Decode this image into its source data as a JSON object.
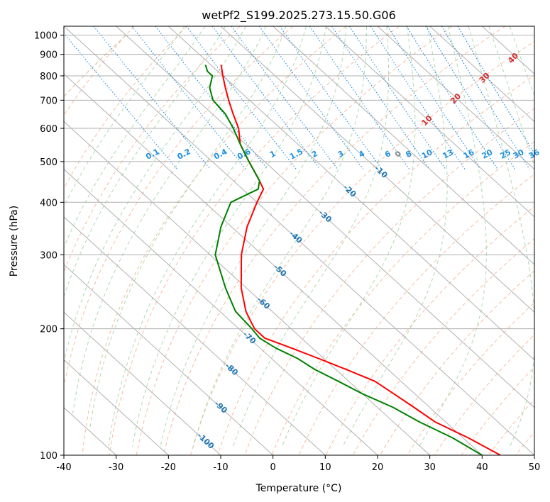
{
  "chart_data": {
    "type": "line",
    "title": "wetPf2_S199.2025.273.15.50.G06",
    "xlabel": "Temperature (°C)",
    "ylabel": "Pressure (hPa)",
    "xlim": [
      -40,
      50
    ],
    "ylim": [
      1050,
      100
    ],
    "yscale": "log",
    "grid": true,
    "x_ticks": [
      "-40",
      "-30",
      "-20",
      "-10",
      "0",
      "10",
      "20",
      "30",
      "40",
      "50"
    ],
    "y_ticks": [
      {
        "p": 100,
        "label": "100"
      },
      {
        "p": 200,
        "label": "200"
      },
      {
        "p": 300,
        "label": "300"
      },
      {
        "p": 400,
        "label": "400"
      },
      {
        "p": 500,
        "label": "500"
      },
      {
        "p": 600,
        "label": "600"
      },
      {
        "p": 700,
        "label": "700"
      },
      {
        "p": 800,
        "label": "800"
      },
      {
        "p": 900,
        "label": "900"
      },
      {
        "p": 1000,
        "label": "1000"
      }
    ],
    "isotherm_labels": [
      {
        "t": -100,
        "p": 108,
        "text": "-100"
      },
      {
        "t": -90,
        "p": 130,
        "text": "-90"
      },
      {
        "t": -80,
        "p": 160,
        "text": "-80"
      },
      {
        "t": -70,
        "p": 190,
        "text": "-70"
      },
      {
        "t": -60,
        "p": 230,
        "text": "-60"
      },
      {
        "t": -50,
        "p": 275,
        "text": "-50"
      },
      {
        "t": -40,
        "p": 330,
        "text": "-40"
      },
      {
        "t": -30,
        "p": 370,
        "text": "-30"
      },
      {
        "t": -20,
        "p": 425,
        "text": "-20"
      },
      {
        "t": -10,
        "p": 472,
        "text": "-10"
      }
    ],
    "mixing_ratio_labels": [
      "0.1",
      "0.2",
      "0.4",
      "0.6",
      "1",
      "1.5",
      "2",
      "3",
      "4",
      "6",
      "8",
      "10",
      "13",
      "16",
      "20",
      "25",
      "30",
      "36"
    ],
    "mixing_ratio_label_t": [
      -23,
      -17,
      -10,
      -5.5,
      0,
      4.5,
      8,
      13,
      17,
      22,
      26,
      29.5,
      33.5,
      37.5,
      41,
      44.5,
      47,
      50
    ],
    "mixing_ratio_values": [
      0.1,
      0.2,
      0.4,
      0.6,
      1,
      1.5,
      2,
      3,
      4,
      6,
      8,
      10,
      13,
      16,
      20,
      25,
      30,
      36
    ],
    "moist_adiabat_labels": [
      {
        "t": 24,
        "p": 520,
        "text": "0"
      },
      {
        "t": 29.5,
        "p": 625,
        "text": "10"
      },
      {
        "t": 35,
        "p": 705,
        "text": "20"
      },
      {
        "t": 40.5,
        "p": 790,
        "text": "30"
      },
      {
        "t": 46,
        "p": 880,
        "text": "40"
      }
    ],
    "series": [
      {
        "name": "",
        "color": "#ff0000",
        "role": "temperature",
        "points": [
          [
            100,
            -46.5
          ],
          [
            110,
            -49
          ],
          [
            120,
            -52
          ],
          [
            130,
            -53
          ],
          [
            140,
            -54
          ],
          [
            150,
            -55
          ],
          [
            160,
            -58
          ],
          [
            170,
            -61
          ],
          [
            180,
            -64
          ],
          [
            190,
            -67
          ],
          [
            200,
            -67
          ],
          [
            210,
            -66
          ],
          [
            220,
            -65
          ],
          [
            250,
            -61
          ],
          [
            300,
            -54
          ],
          [
            350,
            -47
          ],
          [
            400,
            -40
          ],
          [
            430,
            -36
          ],
          [
            450,
            -35
          ],
          [
            500,
            -33
          ],
          [
            550,
            -31
          ],
          [
            600,
            -28
          ],
          [
            650,
            -26
          ],
          [
            700,
            -24
          ],
          [
            750,
            -22
          ],
          [
            800,
            -20
          ],
          [
            850,
            -18
          ]
        ]
      },
      {
        "name": "",
        "color": "#008000",
        "role": "dewpoint",
        "points": [
          [
            100,
            -50
          ],
          [
            110,
            -52
          ],
          [
            120,
            -55
          ],
          [
            130,
            -57
          ],
          [
            140,
            -60
          ],
          [
            150,
            -62
          ],
          [
            160,
            -64
          ],
          [
            170,
            -65
          ],
          [
            180,
            -67
          ],
          [
            190,
            -68
          ],
          [
            200,
            -67.5
          ],
          [
            220,
            -67
          ],
          [
            250,
            -64
          ],
          [
            300,
            -59
          ],
          [
            350,
            -52
          ],
          [
            400,
            -45
          ],
          [
            430,
            -37
          ],
          [
            450,
            -35
          ],
          [
            500,
            -33
          ],
          [
            550,
            -31
          ],
          [
            600,
            -29
          ],
          [
            650,
            -27.5
          ],
          [
            700,
            -27
          ],
          [
            750,
            -25
          ],
          [
            800,
            -22
          ],
          [
            820,
            -22
          ],
          [
            850,
            -21
          ]
        ]
      }
    ],
    "colors": {
      "temperature": "#ff0000",
      "dewpoint": "#008000",
      "dry_adiabat": "#f4a582",
      "moist_adiabat": "#9fd39f",
      "mixing_ratio": "#1f8fe0",
      "isotherm": "#999999",
      "isotherm_label": "#1f77b4",
      "moist_label": "#d62728",
      "theta_e_curve": "#d9c3a0"
    }
  }
}
